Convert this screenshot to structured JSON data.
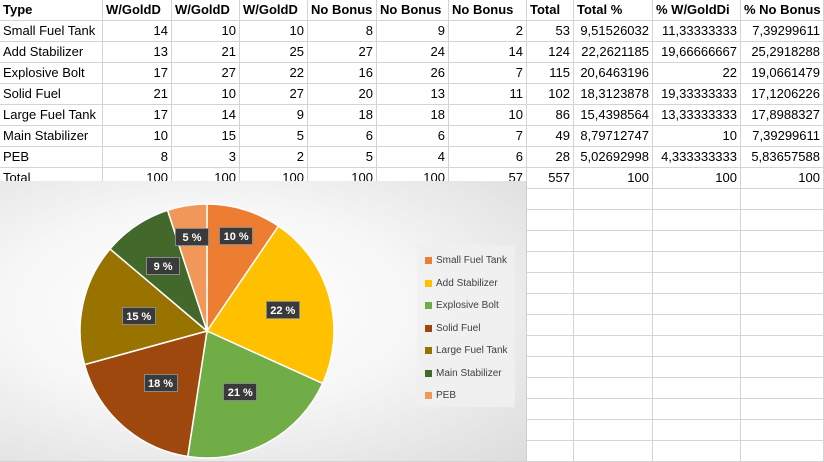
{
  "table": {
    "headers": [
      "Type",
      "W/GoldD",
      "W/GoldD",
      "W/GoldD",
      "No Bonus",
      "No Bonus",
      "No Bonus",
      "Total",
      "Total %",
      "% W/GoldDi",
      "% No Bonus"
    ],
    "rows": [
      [
        "Small Fuel Tank",
        "14",
        "10",
        "10",
        "8",
        "9",
        "2",
        "53",
        "9,51526032",
        "11,33333333",
        "7,39299611"
      ],
      [
        "Add Stabilizer",
        "13",
        "21",
        "25",
        "27",
        "24",
        "14",
        "124",
        "22,2621185",
        "19,66666667",
        "25,2918288"
      ],
      [
        "Explosive Bolt",
        "17",
        "27",
        "22",
        "16",
        "26",
        "7",
        "115",
        "20,6463196",
        "22",
        "19,0661479"
      ],
      [
        "Solid Fuel",
        "21",
        "10",
        "27",
        "20",
        "13",
        "11",
        "102",
        "18,3123878",
        "19,33333333",
        "17,1206226"
      ],
      [
        "Large Fuel Tank",
        "17",
        "14",
        "9",
        "18",
        "18",
        "10",
        "86",
        "15,4398564",
        "13,33333333",
        "17,8988327"
      ],
      [
        "Main Stabilizer",
        "10",
        "15",
        "5",
        "6",
        "6",
        "7",
        "49",
        "8,79712747",
        "10",
        "7,39299611"
      ],
      [
        "PEB",
        "8",
        "3",
        "2",
        "5",
        "4",
        "6",
        "28",
        "5,02692998",
        "4,333333333",
        "5,83657588"
      ],
      [
        "Total",
        "100",
        "100",
        "100",
        "100",
        "100",
        "57",
        "557",
        "100",
        "100",
        "100"
      ]
    ]
  },
  "chart_data": {
    "type": "pie",
    "categories": [
      "Small Fuel Tank",
      "Add Stabilizer",
      "Explosive Bolt",
      "Solid Fuel",
      "Large Fuel Tank",
      "Main Stabilizer",
      "PEB"
    ],
    "values": [
      53,
      124,
      115,
      102,
      86,
      49,
      28
    ],
    "data_labels": [
      "10 %",
      "22 %",
      "21 %",
      "18 %",
      "15 %",
      "9 %",
      "5 %"
    ],
    "colors": [
      "#ED7D31",
      "#FFC000",
      "#70AD47",
      "#9E480E",
      "#997300",
      "#43682B",
      "#F1975A"
    ],
    "legend_position": "right"
  }
}
